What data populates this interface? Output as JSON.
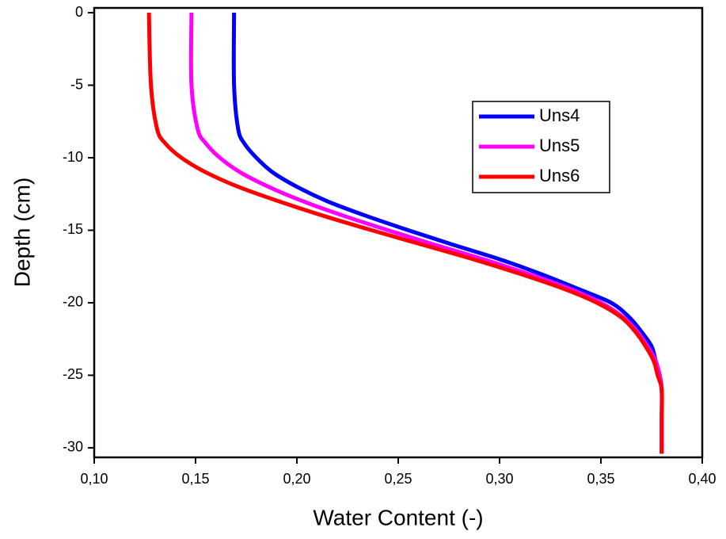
{
  "chart_data": {
    "type": "line",
    "x_label": "Water Content (-)",
    "y_label": "Depth (cm)",
    "xlim": [
      0.1,
      0.4
    ],
    "ylim": [
      -30.66,
      0.33
    ],
    "xticks": [
      {
        "value": 0.1,
        "label": "0,10"
      },
      {
        "value": 0.15,
        "label": "0,15"
      },
      {
        "value": 0.2,
        "label": "0,20"
      },
      {
        "value": 0.25,
        "label": "0,25"
      },
      {
        "value": 0.3,
        "label": "0,30"
      },
      {
        "value": 0.35,
        "label": "0,35"
      },
      {
        "value": 0.4,
        "label": "0,40"
      }
    ],
    "yticks": [
      0,
      -5,
      -10,
      -15,
      -20,
      -25,
      -30
    ],
    "legend_position": "upper right",
    "y": [
      0,
      -5,
      -8,
      -9,
      -10,
      -11,
      -12,
      -13,
      -14,
      -15,
      -16,
      -17,
      -18,
      -19,
      -20,
      -21,
      -22,
      -23,
      -24,
      -25,
      -26,
      -28,
      -30.4
    ],
    "series": [
      {
        "name": "Uns4",
        "color": "#0000ff",
        "x": [
          0.169,
          0.169,
          0.171,
          0.174,
          0.18,
          0.188,
          0.2,
          0.215,
          0.234,
          0.255,
          0.277,
          0.3,
          0.32,
          0.338,
          0.355,
          0.364,
          0.37,
          0.375,
          0.377,
          0.379,
          0.38,
          0.38,
          0.38
        ]
      },
      {
        "name": "Uns5",
        "color": "#ff00ff",
        "x": [
          0.148,
          0.148,
          0.151,
          0.155,
          0.162,
          0.172,
          0.186,
          0.203,
          0.223,
          0.245,
          0.268,
          0.292,
          0.314,
          0.334,
          0.35,
          0.361,
          0.368,
          0.373,
          0.377,
          0.379,
          0.38,
          0.38,
          0.38
        ]
      },
      {
        "name": "Uns6",
        "color": "#ff0000",
        "x": [
          0.127,
          0.128,
          0.131,
          0.135,
          0.143,
          0.155,
          0.171,
          0.191,
          0.213,
          0.237,
          0.262,
          0.287,
          0.31,
          0.331,
          0.348,
          0.36,
          0.367,
          0.372,
          0.376,
          0.378,
          0.38,
          0.38,
          0.38
        ]
      }
    ]
  }
}
